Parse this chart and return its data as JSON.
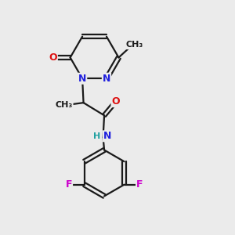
{
  "background_color": "#ebebeb",
  "bond_color": "#1a1a1a",
  "atom_colors": {
    "N": "#2020dd",
    "O": "#dd1010",
    "F": "#cc00cc",
    "H": "#20a0a0",
    "C": "#1a1a1a"
  },
  "font_size_atom": 9,
  "font_size_small": 8
}
